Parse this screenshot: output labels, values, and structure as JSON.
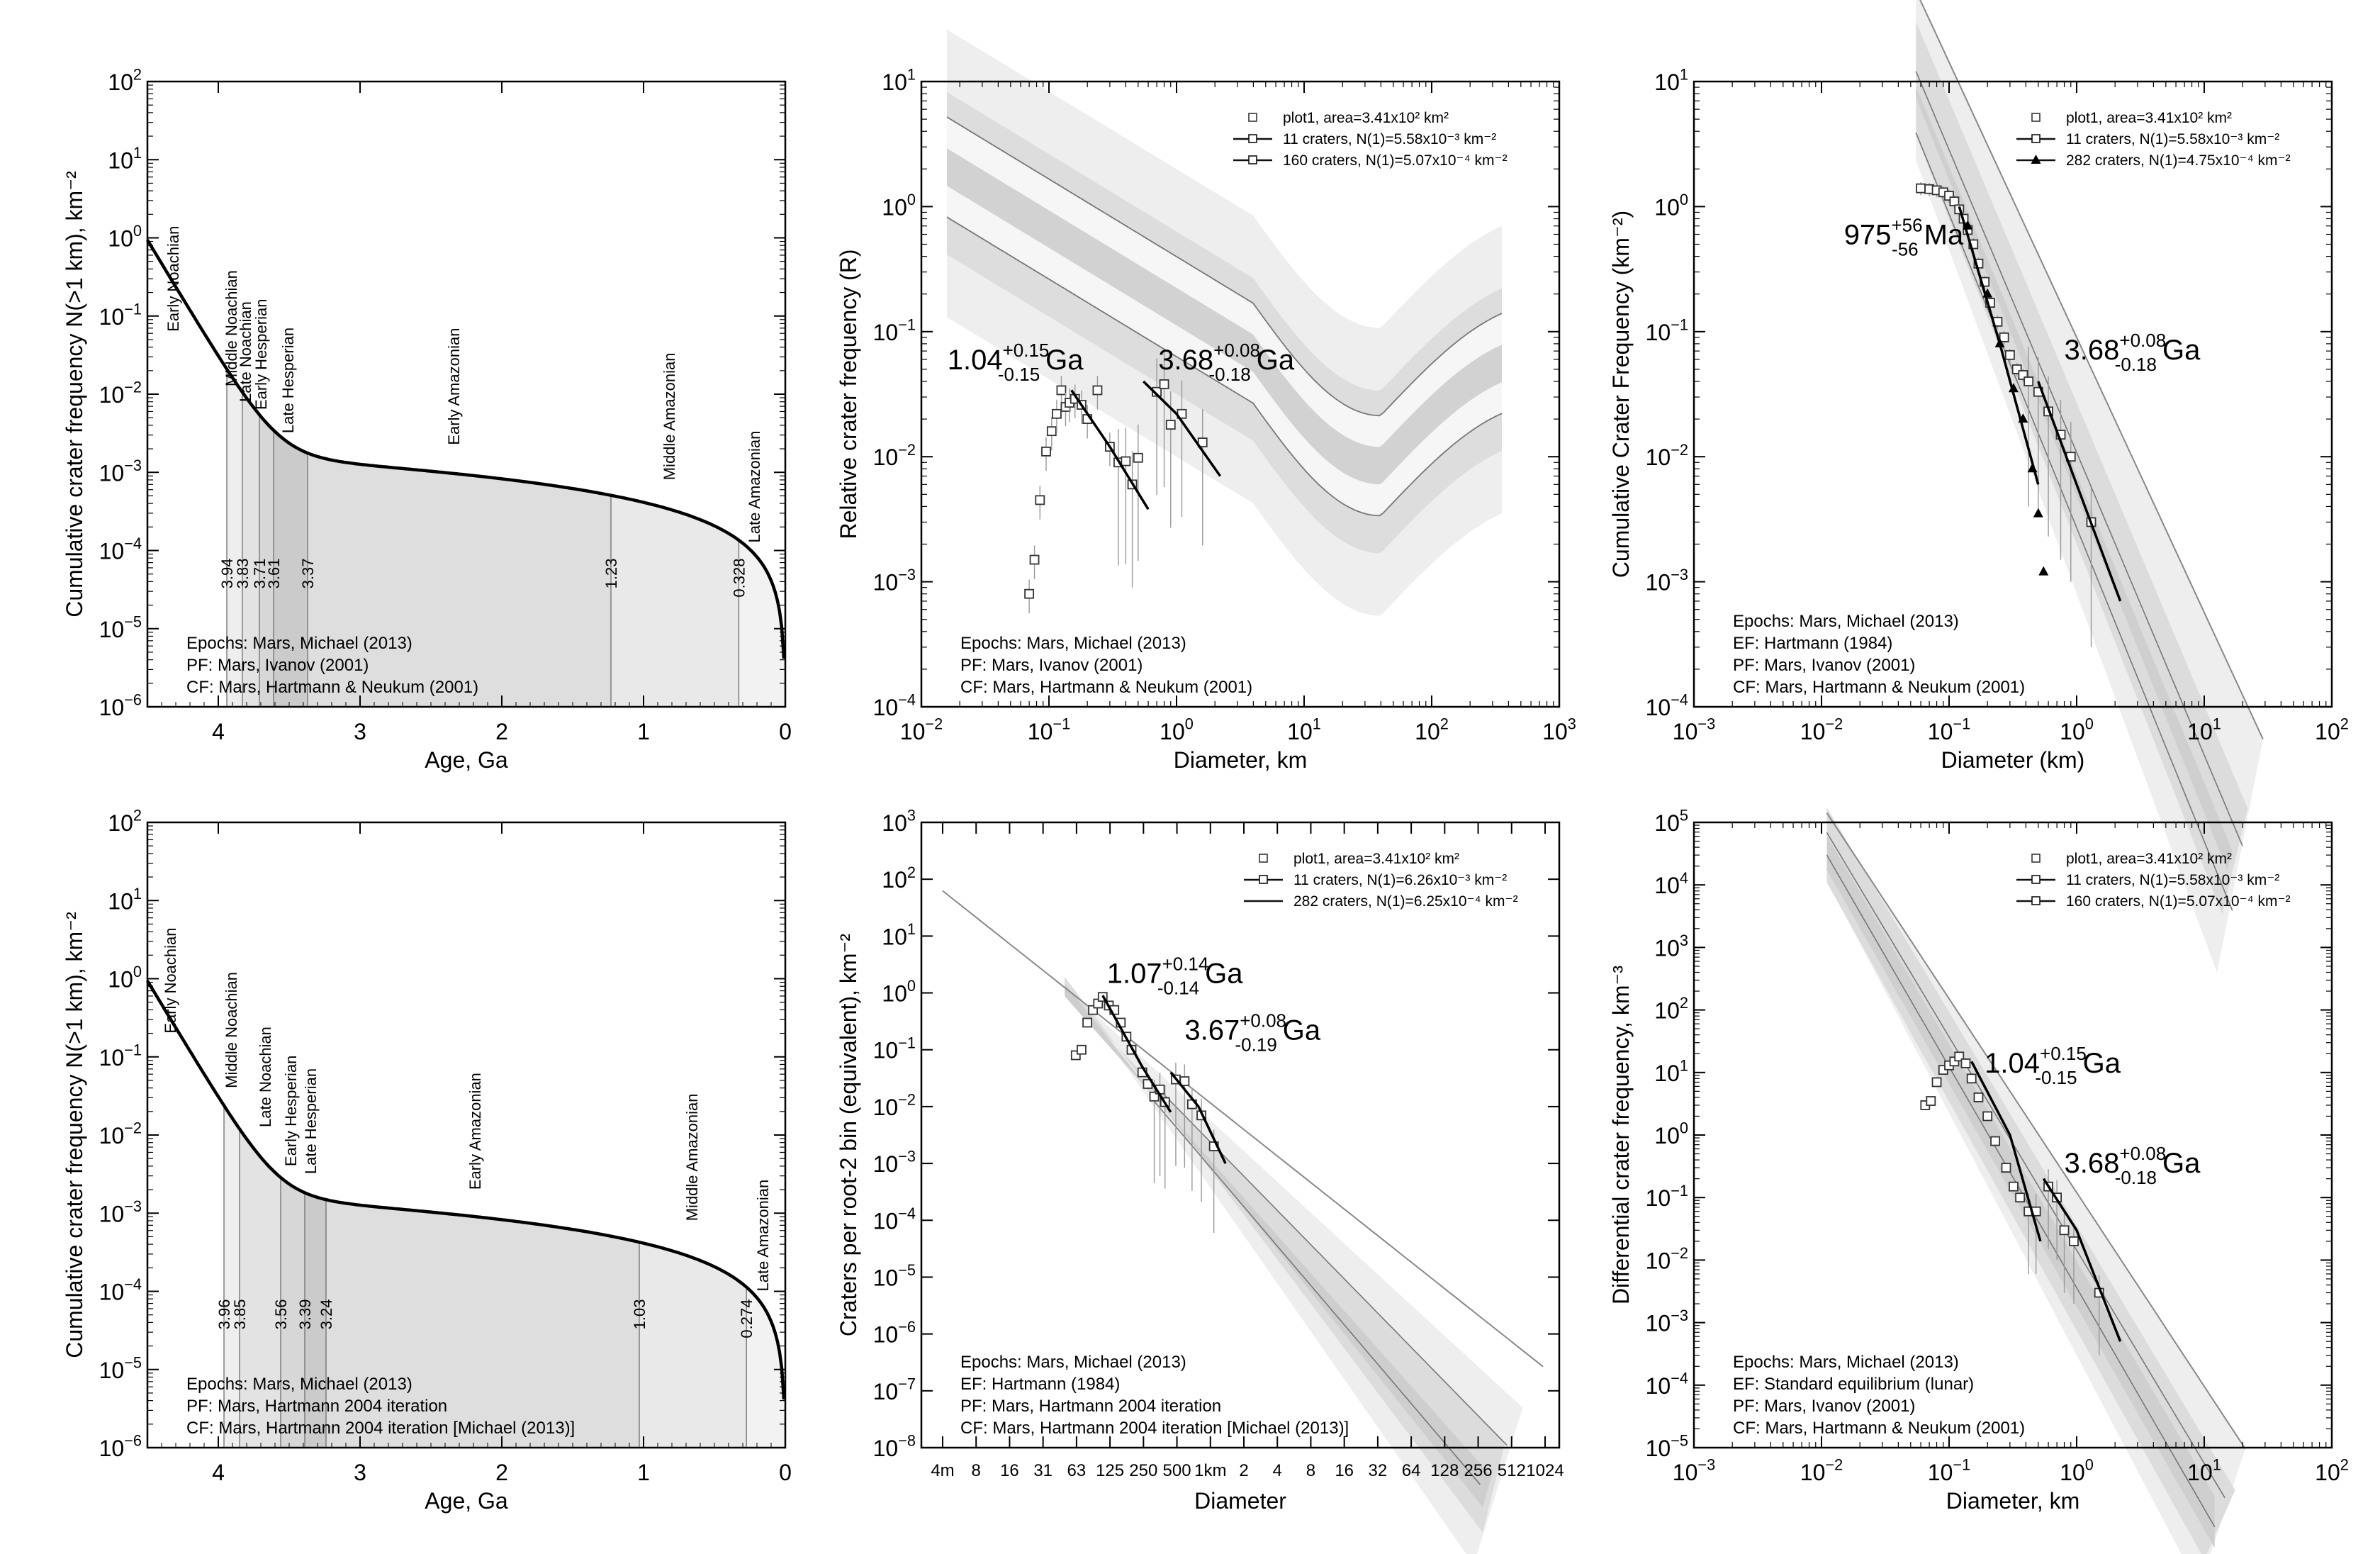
{
  "figure": {
    "panels_note": ""
  },
  "chart_data": [
    {
      "id": "chrono-pf-ivanov",
      "type": "line",
      "xlabel": "Age, Ga",
      "ylabel": "Cumulative crater frequency N(>1 km), km⁻²",
      "xlim": [
        4.5,
        0
      ],
      "ylim_exp": [
        -6,
        2
      ],
      "xticks": [
        "4",
        "3",
        "2",
        "1",
        "0"
      ],
      "epochs": [
        {
          "name": "Early Noachian",
          "label_age": 4.28,
          "label_y": -1.2
        },
        {
          "name": "Middle Noachian",
          "label_age": 3.87,
          "label_y": -1.9
        },
        {
          "name": "Late Noachian",
          "label_age": 3.77,
          "label_y": -2.1
        },
        {
          "name": "Early Hesperian",
          "label_age": 3.66,
          "label_y": -2.2
        },
        {
          "name": "Late Hesperian",
          "label_age": 3.47,
          "label_y": -2.5
        },
        {
          "name": "Early Amazonian",
          "label_age": 2.3,
          "label_y": -2.65
        },
        {
          "name": "Middle Amazonian",
          "label_age": 0.78,
          "label_y": -3.1
        },
        {
          "name": "Late Amazonian",
          "label_age": 0.18,
          "label_y": -3.9
        }
      ],
      "boundaries": [
        "3.94",
        "3.83",
        "3.71",
        "3.61",
        "3.37",
        "1.23",
        "0.328"
      ],
      "boundary_ages": [
        3.94,
        3.83,
        3.71,
        3.61,
        3.37,
        1.23,
        0.328
      ],
      "notes": [
        "Epochs: Mars, Michael (2013)",
        "PF: Mars, Ivanov (2001)",
        "CF: Mars, Hartmann & Neukum (2001)"
      ]
    },
    {
      "id": "rplot-ivanov",
      "type": "scatter",
      "xlabel": "Diameter, km",
      "ylabel": "Relative crater frequency (R)",
      "xlim_exp": [
        -2,
        3
      ],
      "ylim_exp": [
        -4,
        1
      ],
      "legend": [
        {
          "label": "plot1, area=3.41x10² km²",
          "symbol": "square"
        },
        {
          "label": "11 craters, N(1)=5.58x10⁻³ km⁻²",
          "symbol": "line-square"
        },
        {
          "label": "160 craters, N(1)=5.07x10⁻⁴ km⁻²",
          "symbol": "line-square"
        }
      ],
      "ages": [
        {
          "base": "1.04",
          "sup": "+0.15",
          "sub": "-0.15",
          "unit": "Ga"
        },
        {
          "base": "3.68",
          "sup": "+0.08",
          "sub": "-0.18",
          "unit": "Ga"
        }
      ],
      "points": [
        [
          0.07,
          0.0008
        ],
        [
          0.077,
          0.0015
        ],
        [
          0.085,
          0.0045
        ],
        [
          0.095,
          0.011
        ],
        [
          0.105,
          0.016
        ],
        [
          0.115,
          0.022
        ],
        [
          0.125,
          0.034
        ],
        [
          0.135,
          0.025
        ],
        [
          0.145,
          0.027
        ],
        [
          0.16,
          0.029
        ],
        [
          0.18,
          0.026
        ],
        [
          0.2,
          0.02
        ],
        [
          0.24,
          0.034
        ],
        [
          0.3,
          0.012
        ],
        [
          0.35,
          0.009
        ],
        [
          0.4,
          0.0092
        ],
        [
          0.45,
          0.006
        ],
        [
          0.5,
          0.0098
        ],
        [
          0.7,
          0.033
        ],
        [
          0.8,
          0.038
        ],
        [
          0.9,
          0.018
        ],
        [
          1.1,
          0.022
        ],
        [
          1.6,
          0.013
        ]
      ],
      "notes": [
        "Epochs: Mars, Michael (2013)",
        "PF: Mars, Ivanov (2001)",
        "CF: Mars, Hartmann & Neukum (2001)"
      ]
    },
    {
      "id": "cumulative-ivanov",
      "type": "scatter",
      "xlabel": "Diameter (km)",
      "ylabel": "Cumulative Crater Frequency (km⁻²)",
      "xlim_exp": [
        -3,
        2
      ],
      "ylim_exp": [
        -4,
        1
      ],
      "legend": [
        {
          "label": "plot1, area=3.41x10² km²",
          "symbol": "square"
        },
        {
          "label": "11 craters, N(1)=5.58x10⁻³ km⁻²",
          "symbol": "line-square"
        },
        {
          "label": "282 craters, N(1)=4.75x10⁻⁴ km⁻²",
          "symbol": "line-triangle"
        }
      ],
      "ages": [
        {
          "base": "975",
          "sup": "+56",
          "sub": "-56",
          "unit": "Ma"
        },
        {
          "base": "3.68",
          "sup": "+0.08",
          "sub": "-0.18",
          "unit": "Ga"
        }
      ],
      "points": [
        [
          0.06,
          1.4
        ],
        [
          0.07,
          1.38
        ],
        [
          0.08,
          1.35
        ],
        [
          0.09,
          1.3
        ],
        [
          0.1,
          1.22
        ],
        [
          0.11,
          1.1
        ],
        [
          0.12,
          0.95
        ],
        [
          0.13,
          0.8
        ],
        [
          0.14,
          0.65
        ],
        [
          0.155,
          0.5
        ],
        [
          0.17,
          0.35
        ],
        [
          0.19,
          0.25
        ],
        [
          0.21,
          0.17
        ],
        [
          0.24,
          0.12
        ],
        [
          0.27,
          0.09
        ],
        [
          0.3,
          0.065
        ],
        [
          0.34,
          0.05
        ],
        [
          0.38,
          0.045
        ],
        [
          0.42,
          0.04
        ],
        [
          0.5,
          0.033
        ],
        [
          0.6,
          0.023
        ],
        [
          0.75,
          0.015
        ],
        [
          0.9,
          0.01
        ],
        [
          1.3,
          0.003
        ]
      ],
      "notes": [
        "Epochs: Mars, Michael (2013)",
        "EF: Hartmann (1984)",
        "PF: Mars, Ivanov (2001)",
        "CF: Mars, Hartmann & Neukum (2001)"
      ]
    },
    {
      "id": "chrono-pf-hartmann",
      "type": "line",
      "xlabel": "Age, Ga",
      "ylabel": "Cumulative crater frequency N(>1 km), km⁻²",
      "xlim": [
        4.5,
        0
      ],
      "ylim_exp": [
        -6,
        2
      ],
      "xticks": [
        "4",
        "3",
        "2",
        "1",
        "0"
      ],
      "epochs": [
        {
          "name": "Early Noachian",
          "label_age": 4.3,
          "label_y": -0.7
        },
        {
          "name": "Middle Noachian",
          "label_age": 3.87,
          "label_y": -1.4
        },
        {
          "name": "Late Noachian",
          "label_age": 3.63,
          "label_y": -1.9
        },
        {
          "name": "Early Hesperian",
          "label_age": 3.45,
          "label_y": -2.4
        },
        {
          "name": "Late Hesperian",
          "label_age": 3.31,
          "label_y": -2.5
        },
        {
          "name": "Early Amazonian",
          "label_age": 2.15,
          "label_y": -2.7
        },
        {
          "name": "Middle Amazonian",
          "label_age": 0.62,
          "label_y": -3.1
        },
        {
          "name": "Late Amazonian",
          "label_age": 0.12,
          "label_y": -4.0
        }
      ],
      "boundaries": [
        "3.96",
        "3.85",
        "3.56",
        "3.39",
        "3.24",
        "1.03",
        "0.274"
      ],
      "boundary_ages": [
        3.96,
        3.85,
        3.56,
        3.39,
        3.24,
        1.03,
        0.274
      ],
      "notes": [
        "Epochs: Mars, Michael (2013)",
        "PF: Mars, Hartmann 2004 iteration",
        "CF: Mars, Hartmann 2004 iteration [Michael (2013)]"
      ]
    },
    {
      "id": "incremental-hartmann",
      "type": "scatter",
      "xlabel": "Diameter",
      "ylabel": "Craters per root-2 bin (equivalent), km⁻²",
      "ylim_exp": [
        -8,
        3
      ],
      "xticks": [
        "4m",
        "8",
        "16",
        "31",
        "63",
        "125",
        "250",
        "500",
        "1km",
        "2",
        "4",
        "8",
        "16",
        "32",
        "64",
        "128",
        "256",
        "512",
        "1024"
      ],
      "legend": [
        {
          "label": "plot1, area=3.41x10² km²",
          "symbol": "square"
        },
        {
          "label": "11 craters, N(1)=6.26x10⁻³ km⁻²",
          "symbol": "line-square"
        },
        {
          "label": "282 craters, N(1)=6.25x10⁻⁴ km⁻²",
          "symbol": "line"
        }
      ],
      "ages": [
        {
          "base": "1.07",
          "sup": "+0.14",
          "sub": "-0.14",
          "unit": "Ga"
        },
        {
          "base": "3.67",
          "sup": "+0.08",
          "sub": "-0.19",
          "unit": "Ga"
        }
      ],
      "points": [
        [
          0.063,
          0.08
        ],
        [
          0.071,
          0.1
        ],
        [
          0.08,
          0.3
        ],
        [
          0.09,
          0.5
        ],
        [
          0.1,
          0.65
        ],
        [
          0.11,
          0.85
        ],
        [
          0.125,
          0.6
        ],
        [
          0.14,
          0.5
        ],
        [
          0.16,
          0.3
        ],
        [
          0.18,
          0.17
        ],
        [
          0.2,
          0.1
        ],
        [
          0.25,
          0.04
        ],
        [
          0.28,
          0.025
        ],
        [
          0.32,
          0.015
        ],
        [
          0.36,
          0.02
        ],
        [
          0.4,
          0.012
        ],
        [
          0.5,
          0.03
        ],
        [
          0.6,
          0.028
        ],
        [
          0.7,
          0.011
        ],
        [
          0.85,
          0.007
        ],
        [
          1.1,
          0.002
        ]
      ],
      "notes": [
        "Epochs: Mars, Michael (2013)",
        "EF: Hartmann (1984)",
        "PF: Mars, Hartmann 2004 iteration",
        "CF: Mars, Hartmann 2004 iteration [Michael (2013)]"
      ]
    },
    {
      "id": "differential-ivanov",
      "type": "scatter",
      "xlabel": "Diameter, km",
      "ylabel": "Differential crater frequency, km⁻³",
      "xlim_exp": [
        -3,
        2
      ],
      "ylim_exp": [
        -5,
        5
      ],
      "legend": [
        {
          "label": "plot1, area=3.41x10² km²",
          "symbol": "square"
        },
        {
          "label": "11 craters, N(1)=5.58x10⁻³ km⁻²",
          "symbol": "line-square"
        },
        {
          "label": "160 craters, N(1)=5.07x10⁻⁴ km⁻²",
          "symbol": "line-square"
        }
      ],
      "ages": [
        {
          "base": "1.04",
          "sup": "+0.15",
          "sub": "-0.15",
          "unit": "Ga"
        },
        {
          "base": "3.68",
          "sup": "+0.08",
          "sub": "-0.18",
          "unit": "Ga"
        }
      ],
      "points": [
        [
          0.065,
          3
        ],
        [
          0.072,
          3.5
        ],
        [
          0.08,
          7
        ],
        [
          0.09,
          11
        ],
        [
          0.1,
          13
        ],
        [
          0.11,
          15
        ],
        [
          0.12,
          18
        ],
        [
          0.135,
          14
        ],
        [
          0.15,
          8
        ],
        [
          0.17,
          4
        ],
        [
          0.2,
          2
        ],
        [
          0.23,
          0.8
        ],
        [
          0.28,
          0.3
        ],
        [
          0.32,
          0.15
        ],
        [
          0.36,
          0.1
        ],
        [
          0.42,
          0.06
        ],
        [
          0.48,
          0.06
        ],
        [
          0.6,
          0.15
        ],
        [
          0.7,
          0.1
        ],
        [
          0.8,
          0.03
        ],
        [
          0.95,
          0.02
        ],
        [
          1.5,
          0.003
        ]
      ],
      "notes": [
        "Epochs: Mars, Michael (2013)",
        "EF: Standard equilibrium (lunar)",
        "PF: Mars, Ivanov (2001)",
        "CF: Mars, Hartmann & Neukum (2001)"
      ]
    }
  ]
}
